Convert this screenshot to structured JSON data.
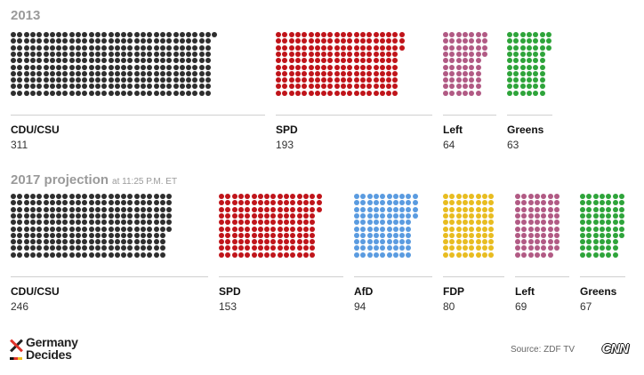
{
  "chart_data": [
    {
      "type": "waffle",
      "title": "2013",
      "subtitle": "",
      "series": [
        {
          "name": "CDU/CSU",
          "value": 311,
          "color": "#2e2e2e"
        },
        {
          "name": "SPD",
          "value": 193,
          "color": "#c0141a"
        },
        {
          "name": "Left",
          "value": 64,
          "color": "#b15a84"
        },
        {
          "name": "Greens",
          "value": 63,
          "color": "#2ea43a"
        }
      ]
    },
    {
      "type": "waffle",
      "title": "2017 projection",
      "subtitle": "at 11:25 P.M. ET",
      "series": [
        {
          "name": "CDU/CSU",
          "value": 246,
          "color": "#2e2e2e"
        },
        {
          "name": "SPD",
          "value": 153,
          "color": "#c0141a"
        },
        {
          "name": "AfD",
          "value": 94,
          "color": "#5a9be0"
        },
        {
          "name": "FDP",
          "value": 80,
          "color": "#e8bc20"
        },
        {
          "name": "Left",
          "value": 69,
          "color": "#b15a84"
        },
        {
          "name": "Greens",
          "value": 67,
          "color": "#2ea43a"
        }
      ]
    }
  ],
  "footer": {
    "logo_line1": "Germany",
    "logo_line2": "Decides",
    "source": "Source: ZDF TV",
    "brand": "CNN"
  }
}
